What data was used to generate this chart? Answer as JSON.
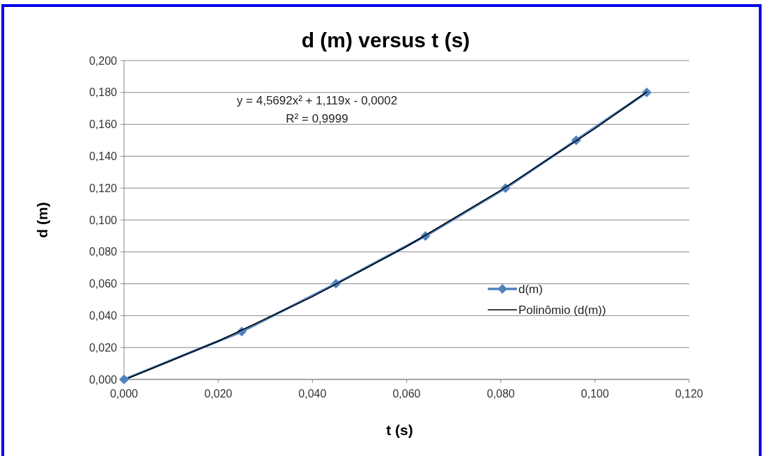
{
  "chart_data": {
    "type": "line",
    "title": "d (m) versus t (s)",
    "xlabel": "t (s)",
    "ylabel": "d (m)",
    "xlim": [
      0,
      0.12
    ],
    "xticks": [
      {
        "value": 0,
        "label": "0,000"
      },
      {
        "value": 0.02,
        "label": "0,020"
      },
      {
        "value": 0.04,
        "label": "0,040"
      },
      {
        "value": 0.06,
        "label": "0,060"
      },
      {
        "value": 0.08,
        "label": "0,080"
      },
      {
        "value": 0.1,
        "label": "0,100"
      },
      {
        "value": 0.12,
        "label": "0,120"
      }
    ],
    "ylim": [
      0,
      0.2
    ],
    "yticks": [
      {
        "value": 0,
        "label": "0,000"
      },
      {
        "value": 0.02,
        "label": "0,020"
      },
      {
        "value": 0.04,
        "label": "0,040"
      },
      {
        "value": 0.06,
        "label": "0,060"
      },
      {
        "value": 0.08,
        "label": "0,080"
      },
      {
        "value": 0.1,
        "label": "0,100"
      },
      {
        "value": 0.12,
        "label": "0,120"
      },
      {
        "value": 0.14,
        "label": "0,140"
      },
      {
        "value": 0.16,
        "label": "0,160"
      },
      {
        "value": 0.18,
        "label": "0,180"
      },
      {
        "value": 0.2,
        "label": "0,200"
      }
    ],
    "grid": "y",
    "legend": "right",
    "line_style": "solid",
    "annotations": [
      "y = 4,5692x² + 1,119x - 0,0002",
      "R² = 0,9999"
    ],
    "series": [
      {
        "name": "d(m)",
        "color": "#4f81bd",
        "marker": "diamond",
        "x": [
          0,
          0.025,
          0.045,
          0.064,
          0.081,
          0.096,
          0.111
        ],
        "values": [
          0,
          0.03,
          0.06,
          0.09,
          0.12,
          0.15,
          0.18
        ]
      },
      {
        "name": "Polinômio (d(m))",
        "type": "line",
        "color": "#000000",
        "marker": "none",
        "x": [
          0.001,
          0.02,
          0.04,
          0.06,
          0.08,
          0.1,
          0.111
        ],
        "values": [
          0.0009,
          0.024,
          0.0519,
          0.0834,
          0.1186,
          0.1574,
          0.1803
        ]
      }
    ]
  }
}
